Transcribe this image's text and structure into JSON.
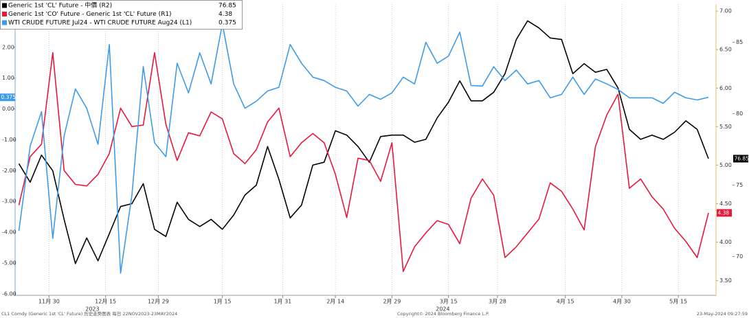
{
  "chart_data": {
    "type": "line",
    "x": [
      "2023-11-22",
      "2023-11-25",
      "2023-11-28",
      "2023-12-01",
      "2023-12-04",
      "2023-12-07",
      "2023-12-10",
      "2023-12-13",
      "2023-12-16",
      "2023-12-19",
      "2023-12-22",
      "2023-12-25",
      "2023-12-28",
      "2023-12-31",
      "2024-01-03",
      "2024-01-06",
      "2024-01-09",
      "2024-01-12",
      "2024-01-15",
      "2024-01-18",
      "2024-01-21",
      "2024-01-24",
      "2024-01-27",
      "2024-01-30",
      "2024-02-02",
      "2024-02-05",
      "2024-02-08",
      "2024-02-11",
      "2024-02-14",
      "2024-02-17",
      "2024-02-20",
      "2024-02-23",
      "2024-02-26",
      "2024-02-29",
      "2024-03-03",
      "2024-03-06",
      "2024-03-09",
      "2024-03-12",
      "2024-03-15",
      "2024-03-18",
      "2024-03-21",
      "2024-03-24",
      "2024-03-27",
      "2024-03-30",
      "2024-04-02",
      "2024-04-05",
      "2024-04-08",
      "2024-04-11",
      "2024-04-14",
      "2024-04-17",
      "2024-04-20",
      "2024-04-23",
      "2024-04-26",
      "2024-04-29",
      "2024-05-02",
      "2024-05-05",
      "2024-05-08",
      "2024-05-11",
      "2024-05-14",
      "2024-05-17",
      "2024-05-20",
      "2024-05-23"
    ],
    "xlim": [
      "2023-11-21",
      "2024-05-25"
    ],
    "xticks": [
      {
        "value": "2023-11-30",
        "label": "11月 30"
      },
      {
        "value": "2023-12-15",
        "label": "12月 15"
      },
      {
        "value": "2023-12-29",
        "label": "12月 29"
      },
      {
        "value": "2024-01-15",
        "label": "1月 15"
      },
      {
        "value": "2024-01-31",
        "label": "1月 31"
      },
      {
        "value": "2024-02-14",
        "label": "2月 14"
      },
      {
        "value": "2024-02-29",
        "label": "2月 29"
      },
      {
        "value": "2024-03-15",
        "label": "3月 15"
      },
      {
        "value": "2024-03-28",
        "label": "3月 28"
      },
      {
        "value": "2024-04-15",
        "label": "4月 15"
      },
      {
        "value": "2024-04-30",
        "label": "4月 30"
      },
      {
        "value": "2024-05-15",
        "label": "5月 15"
      }
    ],
    "year_labels": [
      "2023",
      "2024"
    ],
    "grid": "x",
    "ylim": [
      -6.05,
      3.4
    ],
    "yticks": [
      {
        "value": 3,
        "label": "3.00"
      },
      {
        "value": 2,
        "label": "2.00"
      },
      {
        "value": 1,
        "label": "1.00"
      },
      {
        "value": 0,
        "label": "0.00"
      },
      {
        "value": -1,
        "label": "-1.00"
      },
      {
        "value": -2,
        "label": "-2.00"
      },
      {
        "value": -3,
        "label": "-3.00"
      },
      {
        "value": -4,
        "label": "-4.00"
      },
      {
        "value": -5,
        "label": "-5.00"
      },
      {
        "value": -6,
        "label": "-6.00"
      }
    ],
    "y2lim": [
      3.31,
      7.09
    ],
    "y2ticks": [
      {
        "value": 7,
        "label": "7.00"
      },
      {
        "value": 6.5,
        "label": "6.50"
      },
      {
        "value": 6,
        "label": "6.00"
      },
      {
        "value": 5.5,
        "label": "5.50"
      },
      {
        "value": 5,
        "label": "5.00"
      },
      {
        "value": 4.5,
        "label": "4.50"
      },
      {
        "value": 4,
        "label": "4.00"
      },
      {
        "value": 3.5,
        "label": "3.50"
      }
    ],
    "y3lim": [
      67.28,
      87.67
    ],
    "y3ticks": [
      85,
      80,
      75,
      70
    ],
    "series": [
      {
        "name": "Generic 1st 'CL' Future - 中價 (R2)",
        "color": "#000000",
        "axis": "y3",
        "values": [
          76.5,
          75.2,
          77.1,
          76.0,
          72.6,
          69.5,
          71.3,
          69.7,
          71.6,
          73.5,
          73.7,
          75.1,
          71.9,
          71.4,
          73.8,
          72.6,
          72.1,
          72.6,
          71.9,
          72.9,
          74.3,
          75.0,
          77.7,
          75.4,
          72.7,
          73.6,
          76.4,
          76.6,
          78.8,
          78.5,
          77.7,
          76.6,
          78.4,
          78.5,
          78.5,
          78.0,
          78.2,
          79.7,
          80.8,
          82.3,
          80.9,
          80.9,
          81.5,
          82.8,
          85.2,
          86.5,
          86.0,
          85.3,
          85.2,
          82.8,
          83.5,
          82.9,
          83.1,
          81.8,
          78.9,
          78.2,
          78.5,
          78.2,
          78.7,
          79.5,
          78.9,
          76.85
        ]
      },
      {
        "name": "Generic 1st 'CO' Future - Generic 1st 'CL' Future (R1)",
        "color": "#e8173c",
        "axis": "y2",
        "values": [
          4.48,
          5.11,
          5.27,
          6.46,
          4.93,
          4.75,
          4.73,
          4.88,
          5.15,
          5.74,
          5.5,
          5.52,
          6.46,
          5.53,
          5.06,
          5.42,
          5.38,
          5.69,
          5.6,
          5.15,
          5.02,
          5.2,
          5.56,
          5.74,
          5.11,
          5.29,
          5.41,
          5.29,
          4.88,
          4.32,
          5.09,
          5.06,
          4.79,
          5.29,
          3.62,
          3.94,
          4.12,
          4.28,
          4.23,
          3.98,
          4.57,
          4.82,
          4.61,
          3.8,
          3.94,
          4.12,
          4.3,
          4.77,
          4.66,
          4.43,
          4.16,
          5.24,
          5.65,
          5.92,
          4.7,
          4.82,
          4.59,
          4.43,
          4.18,
          4.01,
          3.8,
          4.38
        ]
      },
      {
        "name": "WTI CRUDE FUTURE Jul24 - WTI CRUDE FUTURE Aug24 (L1)",
        "color": "#3d9be9",
        "axis": "y",
        "values": [
          -3.96,
          -1.21,
          -0.09,
          -4.2,
          -0.88,
          0.65,
          0.02,
          -1.15,
          2.09,
          -5.33,
          -2.79,
          1.37,
          -1.1,
          -1.55,
          1.48,
          0.52,
          1.82,
          0.81,
          2.76,
          0.81,
          0.02,
          0.25,
          0.58,
          0.7,
          2.09,
          1.48,
          1.03,
          0.92,
          0.7,
          0.58,
          0.09,
          0.47,
          0.31,
          0.52,
          1.03,
          0.81,
          2.16,
          1.48,
          1.71,
          2.49,
          0.76,
          0.74,
          1.37,
          0.92,
          1.26,
          0.81,
          0.92,
          0.36,
          0.47,
          1.03,
          0.47,
          0.97,
          0.81,
          0.63,
          0.36,
          0.36,
          0.36,
          0.18,
          0.54,
          0.36,
          0.29,
          0.375
        ]
      }
    ],
    "footer": {
      "left": "CL1 Comdy (Generic 1st 'CL' Future) 历史走势图表 每日 22NOV2023-23MAY2024",
      "center": "Copyright© 2024 Bloomberg Finance L.P.",
      "right": "23-May-2024 09:27:59"
    }
  }
}
